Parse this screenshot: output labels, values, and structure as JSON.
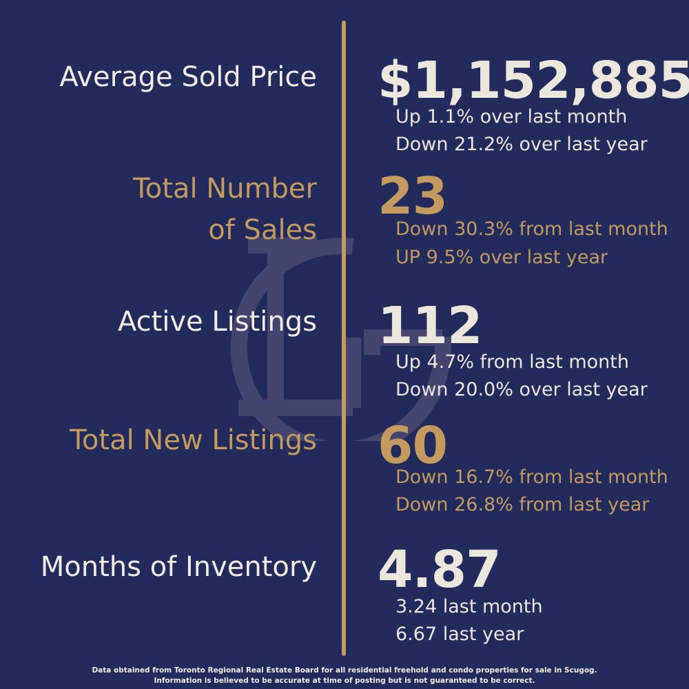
{
  "colors": {
    "background": "#232a5c",
    "gold": "#c49a5e",
    "cream": "#ece7dd"
  },
  "watermark": {
    "logo": "LG monogram",
    "icon": "lg-monogram-watermark"
  },
  "stats": [
    {
      "label_line1": "Average Sold Price",
      "label_line2": "",
      "value": "$1,152,885",
      "detail1": "Up 1.1% over last month",
      "detail2": "Down 21.2% over last year"
    },
    {
      "label_line1": "Total Number",
      "label_line2": "of Sales",
      "value": "23",
      "detail1": "Down 30.3% from last month",
      "detail2": "UP 9.5% over last year"
    },
    {
      "label_line1": "Active Listings",
      "label_line2": "",
      "value": "112",
      "detail1": "Up 4.7% from last month",
      "detail2": "Down 20.0% over last year"
    },
    {
      "label_line1": "Total New Listings",
      "label_line2": "",
      "value": "60",
      "detail1": "Down 16.7% from last month",
      "detail2": "Down 26.8% from last year"
    },
    {
      "label_line1": "Months of Inventory",
      "label_line2": "",
      "value": "4.87",
      "detail1": "3.24 last month",
      "detail2": "6.67 last year"
    }
  ],
  "footer": {
    "line1": "Data obtained from Toronto Regional Real Estate Board for all residential freehold and condo properties for sale in Scugog.",
    "line2": "Information is believed to be accurate at time of posting but is not guaranteed to be correct."
  }
}
